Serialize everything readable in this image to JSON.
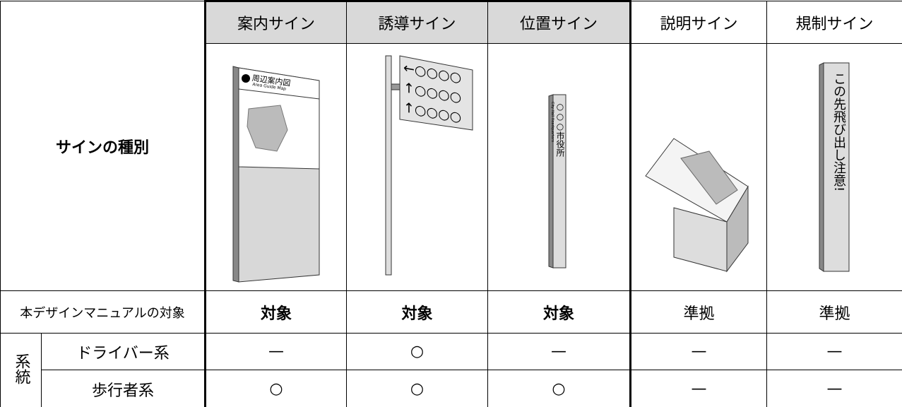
{
  "header": {
    "category_label": "サインの種別",
    "columns": [
      "案内サイン",
      "誘導サイン",
      "位置サイン",
      "説明サイン",
      "規制サイン"
    ]
  },
  "signs": {
    "guide": {
      "title": "周辺案内図",
      "subtitle": "Area Guide Map"
    },
    "direction": {
      "lines": [
        "←○○○○",
        "↑○○○○",
        "↑○○○○"
      ]
    },
    "location": {
      "name": "○○○市役所",
      "subtitle": "City Hall Headquarters"
    },
    "regulation": {
      "text": "この先飛び出し注意!"
    }
  },
  "target": {
    "label": "本デザインマニュアルの対象",
    "values": [
      "対象",
      "対象",
      "対象",
      "準拠",
      "準拠"
    ]
  },
  "system": {
    "label": "系統",
    "rows": [
      {
        "label": "ドライバー系",
        "values": [
          "—",
          "○",
          "—",
          "—",
          "—"
        ]
      },
      {
        "label": "歩行者系",
        "values": [
          "○",
          "○",
          "○",
          "—",
          "—"
        ]
      }
    ]
  }
}
